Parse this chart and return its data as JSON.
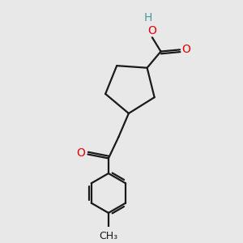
{
  "background_color": "#e8e8e8",
  "bond_color": "#1a1a1a",
  "oxygen_color": "#e00000",
  "hydrogen_color": "#4a9a9a",
  "line_width": 1.6,
  "font_size_atom": 10,
  "fig_size": [
    3.0,
    3.0
  ],
  "dpi": 100,
  "xlim": [
    0,
    10
  ],
  "ylim": [
    0,
    10
  ]
}
